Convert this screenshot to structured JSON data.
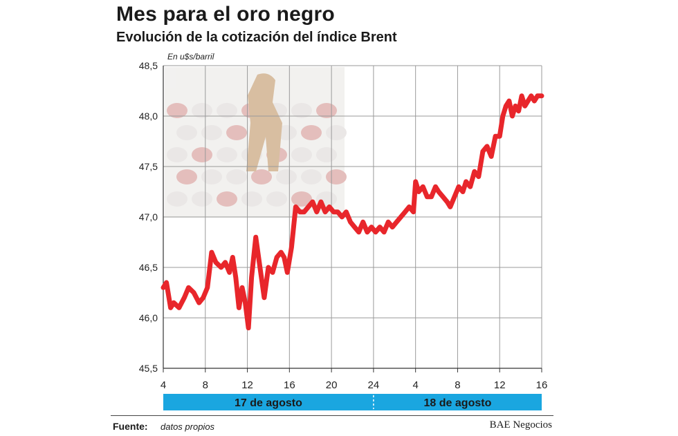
{
  "title": "Mes para el oro negro",
  "subtitle": "Evolución de la cotización del índice Brent",
  "footer": {
    "source_label": "Fuente:",
    "source_text": "datos propios",
    "brand": "BAE Negocios"
  },
  "colors": {
    "line": "#e8262b",
    "band": "#1aa6e0",
    "grid": "#9a9a9a",
    "axis": "#333333"
  },
  "chart_data": {
    "type": "line",
    "ylabel": "En u$s/barril",
    "ylim": [
      45.5,
      48.5
    ],
    "yticks": [
      45.5,
      46.0,
      46.5,
      47.0,
      47.5,
      48.0,
      48.5
    ],
    "ytick_labels": [
      "45,5",
      "46,0",
      "46,5",
      "47,0",
      "47,5",
      "48,0",
      "48,5"
    ],
    "xticks": [
      "4",
      "8",
      "12",
      "16",
      "20",
      "24",
      "4",
      "8",
      "12",
      "16"
    ],
    "xlim": [
      0,
      36
    ],
    "day_bands": [
      {
        "label": "17 de agosto",
        "from": 0,
        "to": 20
      },
      {
        "label": "18 de agosto",
        "from": 20,
        "to": 36
      }
    ],
    "grid": true,
    "series": [
      {
        "x": [
          0,
          0.3,
          0.7,
          1,
          1.5,
          2,
          2.4,
          2.9,
          3.4,
          3.8,
          4.2,
          4.6,
          5,
          5.5,
          5.9,
          6.3,
          6.6,
          6.9,
          7.2,
          7.5,
          7.8,
          8.1,
          8.4,
          8.8,
          9.2,
          9.6,
          10,
          10.4,
          10.8,
          11.2,
          11.5,
          11.8,
          12.2,
          12.6,
          13,
          13.4,
          13.8,
          14.2,
          14.6,
          15,
          15.4,
          15.8,
          16.2,
          16.6,
          17,
          17.4,
          17.8,
          18.2,
          18.6,
          19,
          19.4,
          19.8,
          20.2,
          20.6,
          21,
          21.4,
          21.8,
          22.2,
          22.6,
          23,
          23.4,
          23.8,
          24,
          24.3,
          24.7,
          25.1,
          25.5,
          25.9,
          26.2,
          26.6,
          27,
          27.3,
          27.7,
          28.1,
          28.5,
          28.8,
          29.2,
          29.6,
          30,
          30.4,
          30.8,
          31.2,
          31.6,
          32,
          32.3,
          32.6,
          32.9,
          33.2,
          33.5,
          33.8,
          34.1,
          34.4,
          34.7,
          35,
          35.3,
          35.6,
          36
        ],
        "y": [
          46.3,
          46.35,
          46.1,
          46.15,
          46.1,
          46.2,
          46.3,
          46.25,
          46.15,
          46.2,
          46.3,
          46.65,
          46.55,
          46.5,
          46.55,
          46.45,
          46.6,
          46.4,
          46.1,
          46.3,
          46.15,
          45.9,
          46.4,
          46.8,
          46.5,
          46.2,
          46.5,
          46.45,
          46.6,
          46.65,
          46.6,
          46.45,
          46.7,
          47.1,
          47.05,
          47.05,
          47.1,
          47.15,
          47.05,
          47.15,
          47.05,
          47.1,
          47.05,
          47.05,
          47.0,
          47.05,
          46.95,
          46.9,
          46.85,
          46.95,
          46.85,
          46.9,
          46.85,
          46.9,
          46.85,
          46.95,
          46.9,
          46.95,
          47.0,
          47.05,
          47.1,
          47.05,
          47.35,
          47.25,
          47.3,
          47.2,
          47.2,
          47.3,
          47.25,
          47.2,
          47.15,
          47.1,
          47.2,
          47.3,
          47.25,
          47.35,
          47.3,
          47.45,
          47.4,
          47.65,
          47.7,
          47.6,
          47.8,
          47.8,
          48.0,
          48.1,
          48.15,
          48.0,
          48.1,
          48.05,
          48.2,
          48.1,
          48.15,
          48.2,
          48.15,
          48.2,
          48.2
        ]
      }
    ]
  }
}
